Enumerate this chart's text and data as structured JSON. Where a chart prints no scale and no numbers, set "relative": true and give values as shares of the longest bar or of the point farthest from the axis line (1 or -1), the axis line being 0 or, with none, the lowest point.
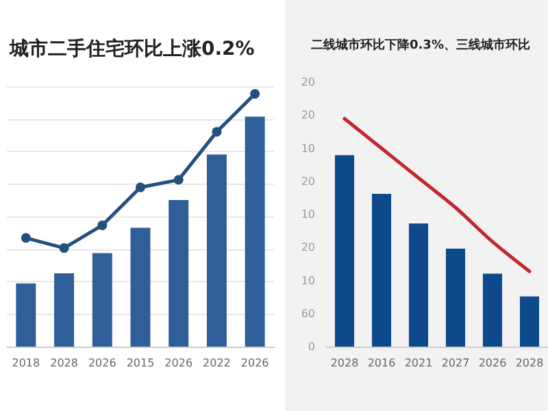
{
  "chart_data": [
    {
      "type": "bar",
      "title": "城市二手住宅环比上涨0.2%",
      "relative": true,
      "grid": "y",
      "categories": [
        "2018",
        "2028",
        "2026",
        "2015",
        "2026",
        "2022",
        "2026"
      ],
      "series": [
        {
          "color": "#2f5f99",
          "values": [
            0.25,
            0.29,
            0.37,
            0.47,
            0.58,
            0.76,
            0.91
          ]
        },
        {
          "type": "line",
          "color": "#24507f",
          "marker": "circle",
          "values": [
            0.43,
            0.39,
            0.48,
            0.63,
            0.66,
            0.85,
            1.0
          ]
        }
      ]
    },
    {
      "type": "bar",
      "title": "二线城市环比下降0.3%、三线城市环比",
      "relative": true,
      "grid": false,
      "annotations": [
        "0",
        "60",
        "10",
        "20",
        "10",
        "20",
        "10",
        "20",
        "20"
      ],
      "categories": [
        "2028",
        "2016",
        "2021",
        "2027",
        "2026",
        "2028"
      ],
      "series": [
        {
          "color": "#0d4a8c",
          "values": [
            0.84,
            0.67,
            0.54,
            0.43,
            0.32,
            0.22
          ]
        },
        {
          "type": "line",
          "color": "#c0282d",
          "marker": "none",
          "values": [
            1.0,
            0.87,
            0.74,
            0.61,
            0.46,
            0.33
          ]
        }
      ]
    }
  ]
}
